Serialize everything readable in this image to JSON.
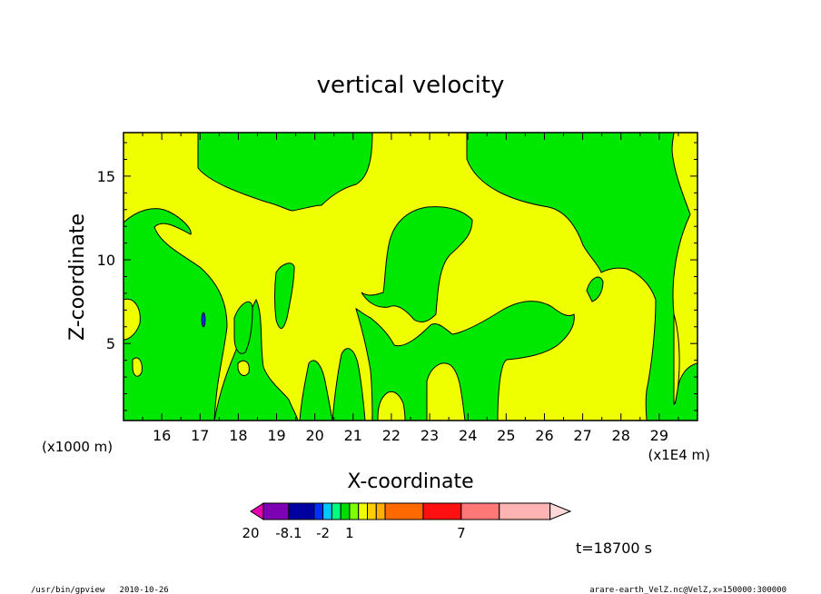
{
  "chart_data": {
    "type": "heatmap",
    "title": "vertical velocity",
    "xlabel": "X-coordinate",
    "ylabel": "Z-coordinate",
    "x_unit_label": "(x1E4 m)",
    "z_unit_label": "(x1000 m)",
    "x_ticks": [
      16,
      17,
      18,
      19,
      20,
      21,
      22,
      23,
      24,
      25,
      26,
      27,
      28,
      29
    ],
    "y_ticks": [
      5,
      10,
      15
    ],
    "xlim": [
      15.0,
      30.0
    ],
    "ylim": [
      0.4,
      17.6
    ],
    "time_label": "t=18700 s",
    "colorbar": {
      "labels": [
        {
          "text": "-8.1",
          "index": 2
        },
        {
          "text": "-2",
          "index": 4
        },
        {
          "text": "1",
          "index": 7
        },
        {
          "text": "7",
          "index": 13
        },
        {
          "text": "20",
          "index": 18
        }
      ],
      "colors": [
        "#e800b0",
        "#7c00b4",
        "#0000a0",
        "#0030ff",
        "#00c8ff",
        "#00ff80",
        "#00dd00",
        "#80ff00",
        "#f0ff00",
        "#ffd000",
        "#ffb000",
        "#ff6a00",
        "#ff1010",
        "#ff7878",
        "#ffb4b4",
        "#ffd8d8"
      ],
      "widths": [
        0.5,
        1,
        1,
        0.35,
        0.35,
        0.35,
        0.35,
        0.35,
        0.35,
        0.35,
        0.35,
        1.5,
        1.5,
        1.5,
        2,
        0.8
      ]
    },
    "fields": {
      "positive_color": "#f0ff00",
      "negative_color": "#00e800"
    }
  },
  "footer": {
    "left": "/usr/bin/gpview   2010-10-26",
    "right": "arare-earth_VelZ.nc@VelZ,x=150000:300000"
  }
}
